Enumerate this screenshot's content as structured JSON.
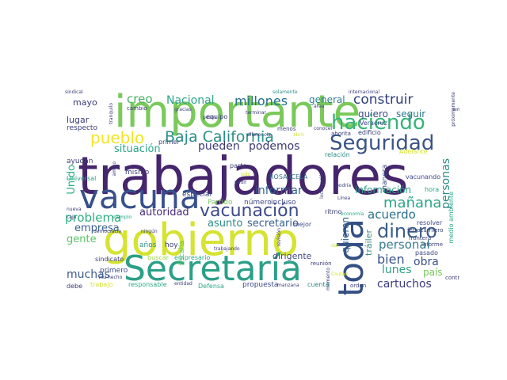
{
  "words": [
    {
      "text": "trabajadores",
      "color": "#45256c"
    },
    {
      "text": "importante",
      "color": "#7ac95a"
    },
    {
      "text": "gobierno",
      "color": "#d5e331"
    },
    {
      "text": "vacuna",
      "color": "#38508b"
    },
    {
      "text": "Secretaría",
      "color": "#2b9f87"
    },
    {
      "text": "toda",
      "color": "#344f83"
    },
    {
      "text": "haciendo",
      "color": "#36b477"
    },
    {
      "text": "Seguridad",
      "color": "#3a5486"
    },
    {
      "text": "vacunación",
      "color": "#3e4a89"
    },
    {
      "text": "Baja California",
      "color": "#2c8e87"
    },
    {
      "text": "dinero",
      "color": "#3b5d8b"
    },
    {
      "text": "pueblo",
      "color": "#f3e523"
    },
    {
      "text": "construir",
      "color": "#2f3e78"
    },
    {
      "text": "millones",
      "color": "#26708d"
    },
    {
      "text": "Nacional",
      "color": "#2ca58b"
    },
    {
      "text": "creo",
      "color": "#4aae63"
    },
    {
      "text": "problema",
      "color": "#2cb17f"
    },
    {
      "text": "mañana",
      "color": "#2ba686"
    },
    {
      "text": "personal",
      "color": "#357b8e"
    },
    {
      "text": "pueden",
      "color": "#3d3876"
    },
    {
      "text": "podemos",
      "color": "#3d3876"
    },
    {
      "text": "situación",
      "color": "#2ba686"
    },
    {
      "text": "informar",
      "color": "#30608d"
    },
    {
      "text": "autoridad",
      "color": "#472a7a"
    },
    {
      "text": "acuerdo",
      "color": "#28718b"
    },
    {
      "text": "bien",
      "color": "#3b548a"
    },
    {
      "text": "lunes",
      "color": "#30a088"
    },
    {
      "text": "obra",
      "color": "#3b5389"
    },
    {
      "text": "cartuchos",
      "color": "#3b3b7f"
    },
    {
      "text": "información",
      "color": "#31a088"
    },
    {
      "text": "quiero",
      "color": "#3b4b8a"
    },
    {
      "text": "seguir",
      "color": "#2f7a8e"
    },
    {
      "text": "general",
      "color": "#2f808e"
    },
    {
      "text": "personas",
      "color": "#2b8c88"
    },
    {
      "text": "Unido",
      "color": "#2cb17f"
    },
    {
      "text": "empresa",
      "color": "#3b628d"
    },
    {
      "text": "gente",
      "color": "#59c364"
    },
    {
      "text": "muchas",
      "color": "#3d5b8c"
    },
    {
      "text": "asunto",
      "color": "#2b8c88"
    },
    {
      "text": "secretario",
      "color": "#3b628d"
    },
    {
      "text": "quieren",
      "color": "#2f608d"
    },
    {
      "text": "tráiler",
      "color": "#418b8b"
    },
    {
      "text": "dirigente",
      "color": "#404b7a"
    },
    {
      "text": "país",
      "color": "#75c95c"
    },
    {
      "text": "mayo",
      "color": "#3a3e78"
    },
    {
      "text": "lugar",
      "color": "#3a3e78"
    },
    {
      "text": "especial",
      "color": "#3f4a88"
    },
    {
      "text": "Partido",
      "color": "#7fc86a"
    },
    {
      "text": "número",
      "color": "#3f4a88"
    },
    {
      "text": "incluso",
      "color": "#3f4a88"
    },
    {
      "text": "ROSA ICELA",
      "color": "#3a6c8d"
    },
    {
      "text": "respecto",
      "color": "#3a3e78"
    },
    {
      "text": "ayudan",
      "color": "#3a3e78"
    },
    {
      "text": "mismo",
      "color": "#3a3e78"
    },
    {
      "text": "Universal",
      "color": "#2ba686"
    },
    {
      "text": "primer",
      "color": "#3a3e78"
    },
    {
      "text": "años",
      "color": "#2b8c88"
    },
    {
      "text": "hoy",
      "color": "#3a3e78"
    },
    {
      "text": "fiscalía",
      "color": "#59c364"
    },
    {
      "text": "buscar",
      "color": "#9ed843"
    },
    {
      "text": "empresario",
      "color": "#2ba686"
    },
    {
      "text": "responsable",
      "color": "#2ba686"
    },
    {
      "text": "trabajo",
      "color": "#d5e331"
    },
    {
      "text": "Defensa",
      "color": "#2ba686"
    },
    {
      "text": "propuesta",
      "color": "#3b4b8a"
    },
    {
      "text": "cuenta",
      "color": "#2b8c88"
    },
    {
      "text": "debe",
      "color": "#3a3e78"
    },
    {
      "text": "pasado",
      "color": "#3f4a88"
    },
    {
      "text": "resolver",
      "color": "#3f4a88"
    },
    {
      "text": "hora",
      "color": "#2ba686"
    },
    {
      "text": "vacunando",
      "color": "#3f4a88"
    },
    {
      "text": "manera",
      "color": "#3f4a88"
    },
    {
      "text": "medio ambiente",
      "color": "#2ba686"
    },
    {
      "text": "relación",
      "color": "#2b8c88"
    },
    {
      "text": "Adelante",
      "color": "#d5e331"
    },
    {
      "text": "Veracruz",
      "color": "#3f4a88"
    },
    {
      "text": "edificio",
      "color": "#3a3e78"
    },
    {
      "text": "ahorita",
      "color": "#3a3e78"
    },
    {
      "text": "equipo",
      "color": "#3a3e78"
    },
    {
      "text": "cambio",
      "color": "#3a3e78"
    },
    {
      "text": "menos",
      "color": "#3a3e78"
    },
    {
      "text": "parte",
      "color": "#3a3e78"
    },
    {
      "text": "mejor",
      "color": "#3f4a88"
    },
    {
      "text": "ritmo",
      "color": "#3a3e78"
    },
    {
      "text": "sindicato",
      "color": "#3a3e78"
    },
    {
      "text": "primero",
      "color": "#3f4a88"
    },
    {
      "text": "ferrocarrilero",
      "color": "#3a3e78"
    },
    {
      "text": "frontera",
      "color": "#3a3e78"
    },
    {
      "text": "informe",
      "color": "#3a3e78"
    },
    {
      "text": "contrato",
      "color": "#3a3e78"
    },
    {
      "text": "orden",
      "color": "#3a3e78"
    },
    {
      "text": "reunión",
      "color": "#3a3e78"
    },
    {
      "text": "entidad",
      "color": "#3a3e78"
    },
    {
      "text": "manzana",
      "color": "#3a3e78"
    },
    {
      "text": "internacional",
      "color": "#3a3e78"
    },
    {
      "text": "sindical",
      "color": "#3a3e78"
    },
    {
      "text": "solamente",
      "color": "#2b8c88"
    },
    {
      "text": "área",
      "color": "#3a3e78"
    },
    {
      "text": "tranquilo",
      "color": "#3a3e78"
    },
    {
      "text": "próximamente",
      "color": "#3a3e78"
    },
    {
      "text": "terminar",
      "color": "#3a3e78"
    },
    {
      "text": "pedir",
      "color": "#3a3e78"
    },
    {
      "text": "sido",
      "color": "#d5e331"
    },
    {
      "text": "localización",
      "color": "#3a3e78"
    },
    {
      "text": "podría",
      "color": "#3a3e78"
    },
    {
      "text": "Línea",
      "color": "#3a3e78"
    },
    {
      "text": "economía",
      "color": "#2ba686"
    },
    {
      "text": "trabajando",
      "color": "#3a3e78"
    },
    {
      "text": "revisión",
      "color": "#3a3e78"
    },
    {
      "text": "semana",
      "color": "#3a3e78"
    },
    {
      "text": "Ciudad",
      "color": "#d5e331"
    },
    {
      "text": "dar",
      "color": "#d5e331"
    },
    {
      "text": "hecho",
      "color": "#3a3e78"
    },
    {
      "text": "vez",
      "color": "#3a3e78"
    },
    {
      "text": "ningún",
      "color": "#3a3e78"
    },
    {
      "text": "democracia",
      "color": "#3a3e78"
    },
    {
      "text": "caja",
      "color": "#3a3e78"
    },
    {
      "text": "nueva",
      "color": "#3a3e78"
    },
    {
      "text": "ejemplo",
      "color": "#2ba686"
    },
    {
      "text": "amigo",
      "color": "#3a3e78"
    },
    {
      "text": "diferencia",
      "color": "#3a3e78"
    },
    {
      "text": "momento",
      "color": "#3a3e78"
    },
    {
      "text": "gracias",
      "color": "#3a3e78"
    },
    {
      "text": "conocer",
      "color": "#3a3e78"
    },
    {
      "text": "abrir",
      "color": "#d5e331"
    },
    {
      "text": "pesos",
      "color": "#3a3e78"
    }
  ]
}
